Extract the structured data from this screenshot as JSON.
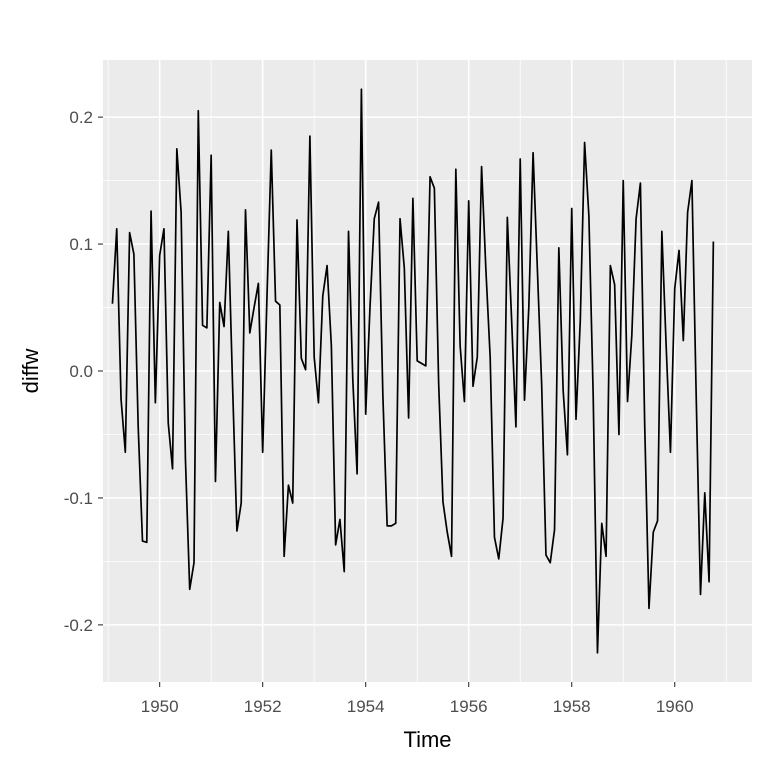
{
  "chart_data": {
    "type": "line",
    "xlabel": "Time",
    "ylabel": "diffw",
    "xlim": [
      1948.9,
      1961.5
    ],
    "ylim": [
      -0.245,
      0.245
    ],
    "x_ticks": [
      1950,
      1952,
      1954,
      1956,
      1958,
      1960
    ],
    "x_tick_labels": [
      "1950",
      "1952",
      "1954",
      "1956",
      "1958",
      "1960"
    ],
    "y_ticks": [
      -0.2,
      -0.1,
      0.0,
      0.1,
      0.2
    ],
    "y_tick_labels": [
      "-0.2",
      "-0.1",
      "0.0",
      "0.1",
      "0.2"
    ],
    "grid": true,
    "background": "#ebebeb",
    "grid_color": "#ffffff",
    "line_color": "#000000",
    "series": [
      {
        "x_start": 1949.0833,
        "x_step": 0.083333,
        "values": [
          0.053,
          0.112,
          -0.022,
          -0.064,
          0.109,
          0.092,
          -0.044,
          -0.134,
          -0.135,
          0.126,
          -0.025,
          0.091,
          0.112,
          -0.041,
          -0.077,
          0.175,
          0.125,
          -0.069,
          -0.172,
          -0.151,
          0.205,
          0.036,
          0.034,
          0.17,
          -0.087,
          0.054,
          0.035,
          0.11,
          -0.013,
          -0.126,
          -0.104,
          0.127,
          0.03,
          0.05,
          0.069,
          -0.064,
          0.058,
          0.174,
          0.055,
          0.052,
          -0.146,
          -0.09,
          -0.104,
          0.119,
          0.01,
          0.001,
          0.185,
          0.011,
          -0.025,
          0.059,
          0.083,
          0.02,
          -0.137,
          -0.117,
          -0.158,
          0.11,
          -0.007,
          -0.081,
          0.222,
          -0.034,
          0.05,
          0.12,
          0.133,
          -0.019,
          -0.122,
          -0.122,
          -0.12,
          0.12,
          0.081,
          -0.037,
          0.136,
          0.008,
          0.006,
          0.004,
          0.153,
          0.144,
          -0.01,
          -0.103,
          -0.127,
          -0.146,
          0.159,
          0.02,
          -0.024,
          0.134,
          -0.012,
          0.011,
          0.161,
          0.08,
          0.011,
          -0.131,
          -0.148,
          -0.116,
          0.121,
          0.04,
          -0.044,
          0.167,
          -0.023,
          0.05,
          0.172,
          0.08,
          -0.011,
          -0.145,
          -0.151,
          -0.125,
          0.097,
          -0.015,
          -0.066,
          0.128,
          -0.038,
          0.04,
          0.18,
          0.122,
          -0.019,
          -0.222,
          -0.12,
          -0.146,
          0.083,
          0.068,
          -0.05,
          0.15,
          -0.024,
          0.028,
          0.12,
          0.148,
          -0.042,
          -0.187,
          -0.127,
          -0.118,
          0.11,
          0.02,
          -0.064,
          0.065,
          0.095,
          0.024,
          0.125,
          0.15,
          -0.02,
          -0.176,
          -0.096,
          -0.166,
          0.102
        ]
      }
    ]
  }
}
